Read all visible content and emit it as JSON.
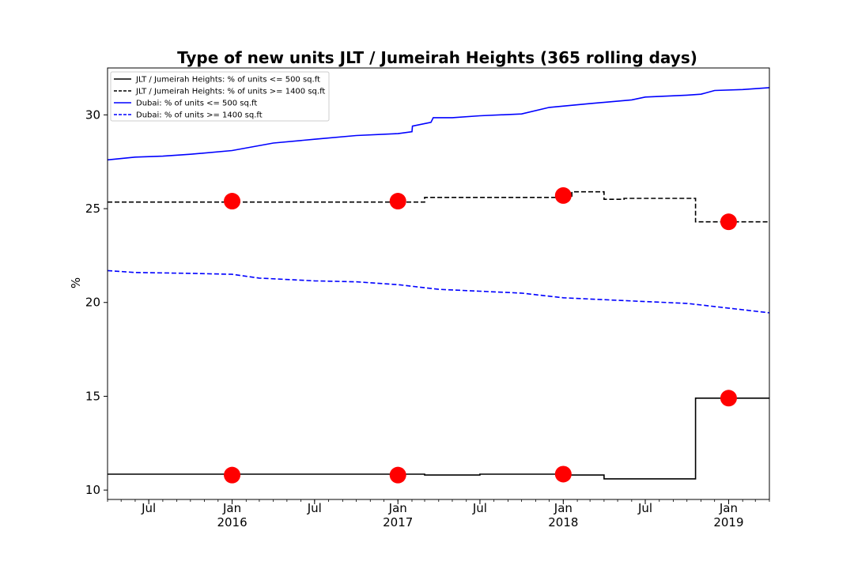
{
  "chart_data": {
    "type": "line",
    "title": "Type of new units JLT / Jumeirah Heights (365 rolling days)",
    "xlabel": "",
    "ylabel": "%",
    "x_range": [
      "2015-04-01",
      "2019-04-01"
    ],
    "ylim": [
      9.5,
      32.5
    ],
    "y_ticks": [
      10,
      15,
      20,
      25,
      30
    ],
    "x_ticks": [
      {
        "date": "2015-07-01",
        "label": "Jul",
        "year": ""
      },
      {
        "date": "2016-01-01",
        "label": "Jan",
        "year": "2016"
      },
      {
        "date": "2016-07-01",
        "label": "Jul",
        "year": ""
      },
      {
        "date": "2017-01-01",
        "label": "Jan",
        "year": "2017"
      },
      {
        "date": "2017-07-01",
        "label": "Jul",
        "year": ""
      },
      {
        "date": "2018-01-01",
        "label": "Jan",
        "year": "2018"
      },
      {
        "date": "2018-07-01",
        "label": "Jul",
        "year": ""
      },
      {
        "date": "2019-01-01",
        "label": "Jan",
        "year": "2019"
      }
    ],
    "legend_position": "top-left",
    "series": [
      {
        "name": "JLT / Jumeirah Heights: % of units <= 500 sq.ft",
        "color": "#000000",
        "style": "solid",
        "step": true,
        "points": [
          [
            "2015-04-01",
            10.85
          ],
          [
            "2017-03-01",
            10.8
          ],
          [
            "2017-07-01",
            10.85
          ],
          [
            "2018-01-10",
            10.8
          ],
          [
            "2018-04-01",
            10.6
          ],
          [
            "2018-10-20",
            14.9
          ],
          [
            "2019-04-01",
            14.9
          ]
        ]
      },
      {
        "name": "JLT / Jumeirah Heights: % of units >= 1400 sq.ft",
        "color": "#000000",
        "style": "dashed",
        "step": true,
        "points": [
          [
            "2015-04-01",
            25.35
          ],
          [
            "2017-03-01",
            25.6
          ],
          [
            "2018-01-20",
            25.9
          ],
          [
            "2018-04-01",
            25.5
          ],
          [
            "2018-05-15",
            25.55
          ],
          [
            "2018-10-20",
            24.3
          ],
          [
            "2019-04-01",
            24.3
          ]
        ]
      },
      {
        "name": "Dubai: % of units <= 500 sq.ft",
        "color": "#0000ff",
        "style": "solid",
        "step": false,
        "points": [
          [
            "2015-04-01",
            27.6
          ],
          [
            "2015-06-01",
            27.75
          ],
          [
            "2015-08-01",
            27.8
          ],
          [
            "2015-10-01",
            27.9
          ],
          [
            "2016-01-01",
            28.1
          ],
          [
            "2016-04-01",
            28.5
          ],
          [
            "2016-07-01",
            28.7
          ],
          [
            "2016-10-01",
            28.9
          ],
          [
            "2017-01-01",
            29.0
          ],
          [
            "2017-02-01",
            29.1
          ],
          [
            "2017-02-02",
            29.4
          ],
          [
            "2017-03-15",
            29.6
          ],
          [
            "2017-03-20",
            29.85
          ],
          [
            "2017-05-01",
            29.85
          ],
          [
            "2017-07-01",
            29.95
          ],
          [
            "2017-10-01",
            30.05
          ],
          [
            "2017-12-01",
            30.4
          ],
          [
            "2018-03-01",
            30.6
          ],
          [
            "2018-06-01",
            30.8
          ],
          [
            "2018-07-01",
            30.95
          ],
          [
            "2018-10-01",
            31.05
          ],
          [
            "2018-11-01",
            31.1
          ],
          [
            "2018-12-01",
            31.3
          ],
          [
            "2019-02-01",
            31.35
          ],
          [
            "2019-04-01",
            31.45
          ]
        ]
      },
      {
        "name": "Dubai: % of units >= 1400 sq.ft",
        "color": "#0000ff",
        "style": "dashed",
        "step": false,
        "points": [
          [
            "2015-04-01",
            21.7
          ],
          [
            "2015-06-01",
            21.6
          ],
          [
            "2015-10-01",
            21.55
          ],
          [
            "2016-01-01",
            21.5
          ],
          [
            "2016-03-01",
            21.3
          ],
          [
            "2016-07-01",
            21.15
          ],
          [
            "2016-10-01",
            21.1
          ],
          [
            "2017-01-01",
            20.95
          ],
          [
            "2017-04-01",
            20.7
          ],
          [
            "2017-07-01",
            20.6
          ],
          [
            "2017-10-01",
            20.5
          ],
          [
            "2018-01-01",
            20.25
          ],
          [
            "2018-04-01",
            20.15
          ],
          [
            "2018-07-01",
            20.05
          ],
          [
            "2018-10-01",
            19.95
          ],
          [
            "2019-01-01",
            19.7
          ],
          [
            "2019-04-01",
            19.45
          ]
        ]
      }
    ],
    "markers": {
      "color": "#ff0000",
      "points": [
        [
          "2016-01-01",
          10.8
        ],
        [
          "2017-01-01",
          10.8
        ],
        [
          "2018-01-01",
          10.85
        ],
        [
          "2019-01-01",
          14.9
        ],
        [
          "2016-01-01",
          25.4
        ],
        [
          "2017-01-01",
          25.4
        ],
        [
          "2018-01-01",
          25.7
        ],
        [
          "2019-01-01",
          24.3
        ]
      ]
    }
  }
}
